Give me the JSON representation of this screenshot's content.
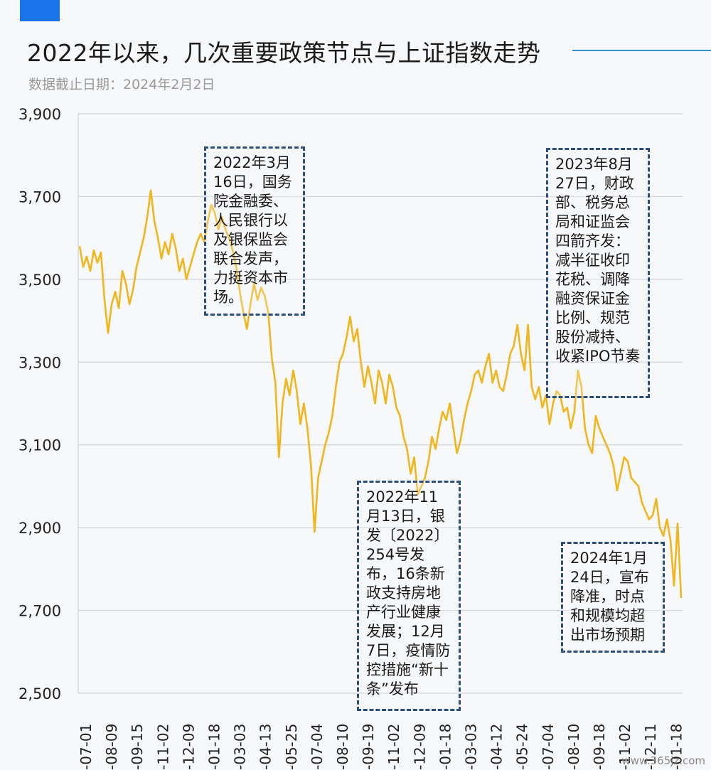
{
  "header": {
    "title": "2022年以来，几次重要政策节点与上证指数走势",
    "subtitle": "数据截止日期：2024年2月2日"
  },
  "annotations": [
    {
      "text": "2022年3月16日，国务院金融委、人民银行以及银保监会联合发声，力挺资本市场。"
    },
    {
      "text": "2022年11月13日，银发〔2022〕254号发布，16条新政支持房地产行业健康发展；12月7日，疫情防控措施“新十条”发布"
    },
    {
      "text": "2023年8月27日，财政部、税务总局和证监会四箭齐发：减半征收印花税、调降融资保证金比例、规范股份减持、收紧IPO节奏"
    },
    {
      "text": "2024年1月24日，宣布降准，时点和规模均超出市场预期"
    }
  ],
  "watermark": "www.365jz.com",
  "chart_data": {
    "type": "line",
    "title": "2022年以来，几次重要政策节点与上证指数走势",
    "subtitle": "数据截止日期：2024年2月2日",
    "xlabel": "",
    "ylabel": "",
    "ylim": [
      2500,
      3900
    ],
    "y_ticks": [
      2500,
      2700,
      2900,
      3100,
      3300,
      3500,
      3700,
      3900
    ],
    "y_tick_labels": [
      "2,500",
      "2,700",
      "2,900",
      "3,100",
      "3,300",
      "3,500",
      "3,700",
      "3,900"
    ],
    "x_tick_labels": [
      "-07-01",
      "-08-09",
      "-09-15",
      "-11-02",
      "-12-09",
      "-01-18",
      "-03-03",
      "-04-13",
      "-05-25",
      "-07-04",
      "-08-10",
      "-09-19",
      "-11-02",
      "-12-09",
      "-01-18",
      "-03-03",
      "-04-12",
      "-05-24",
      "-07-04",
      "-08-10",
      "-09-18",
      "-11-02",
      "-12-11",
      "-01-18"
    ],
    "grid": true,
    "line_color": "#f2b51b",
    "series": [
      {
        "values": [
          3580,
          3530,
          3555,
          3520,
          3570,
          3540,
          3565,
          3450,
          3370,
          3440,
          3470,
          3430,
          3520,
          3490,
          3440,
          3475,
          3530,
          3565,
          3600,
          3650,
          3715,
          3640,
          3600,
          3550,
          3590,
          3560,
          3610,
          3575,
          3520,
          3550,
          3500,
          3530,
          3560,
          3590,
          3610,
          3590,
          3640,
          3680,
          3660,
          3620,
          3650,
          3620,
          3600,
          3570,
          3530,
          3470,
          3420,
          3380,
          3440,
          3490,
          3450,
          3480,
          3460,
          3420,
          3310,
          3250,
          3070,
          3200,
          3260,
          3220,
          3280,
          3230,
          3150,
          3200,
          3140,
          3050,
          2890,
          3020,
          3060,
          3100,
          3130,
          3170,
          3240,
          3300,
          3320,
          3360,
          3410,
          3350,
          3380,
          3300,
          3240,
          3290,
          3250,
          3200,
          3280,
          3250,
          3200,
          3270,
          3240,
          3190,
          3170,
          3120,
          3090,
          3030,
          3070,
          2980,
          3000,
          3020,
          3060,
          3120,
          3090,
          3140,
          3180,
          3160,
          3200,
          3140,
          3080,
          3110,
          3160,
          3200,
          3230,
          3270,
          3280,
          3250,
          3290,
          3320,
          3250,
          3280,
          3240,
          3230,
          3270,
          3320,
          3340,
          3390,
          3320,
          3280,
          3390,
          3240,
          3210,
          3240,
          3190,
          3220,
          3150,
          3200,
          3230,
          3220,
          3180,
          3190,
          3140,
          3180,
          3280,
          3240,
          3140,
          3100,
          3080,
          3170,
          3140,
          3120,
          3100,
          3080,
          3050,
          2990,
          3030,
          3070,
          3060,
          3020,
          3010,
          3000,
          2960,
          2940,
          2920,
          2930,
          2970,
          2900,
          2880,
          2920,
          2870,
          2760,
          2910,
          2730
        ]
      }
    ]
  }
}
